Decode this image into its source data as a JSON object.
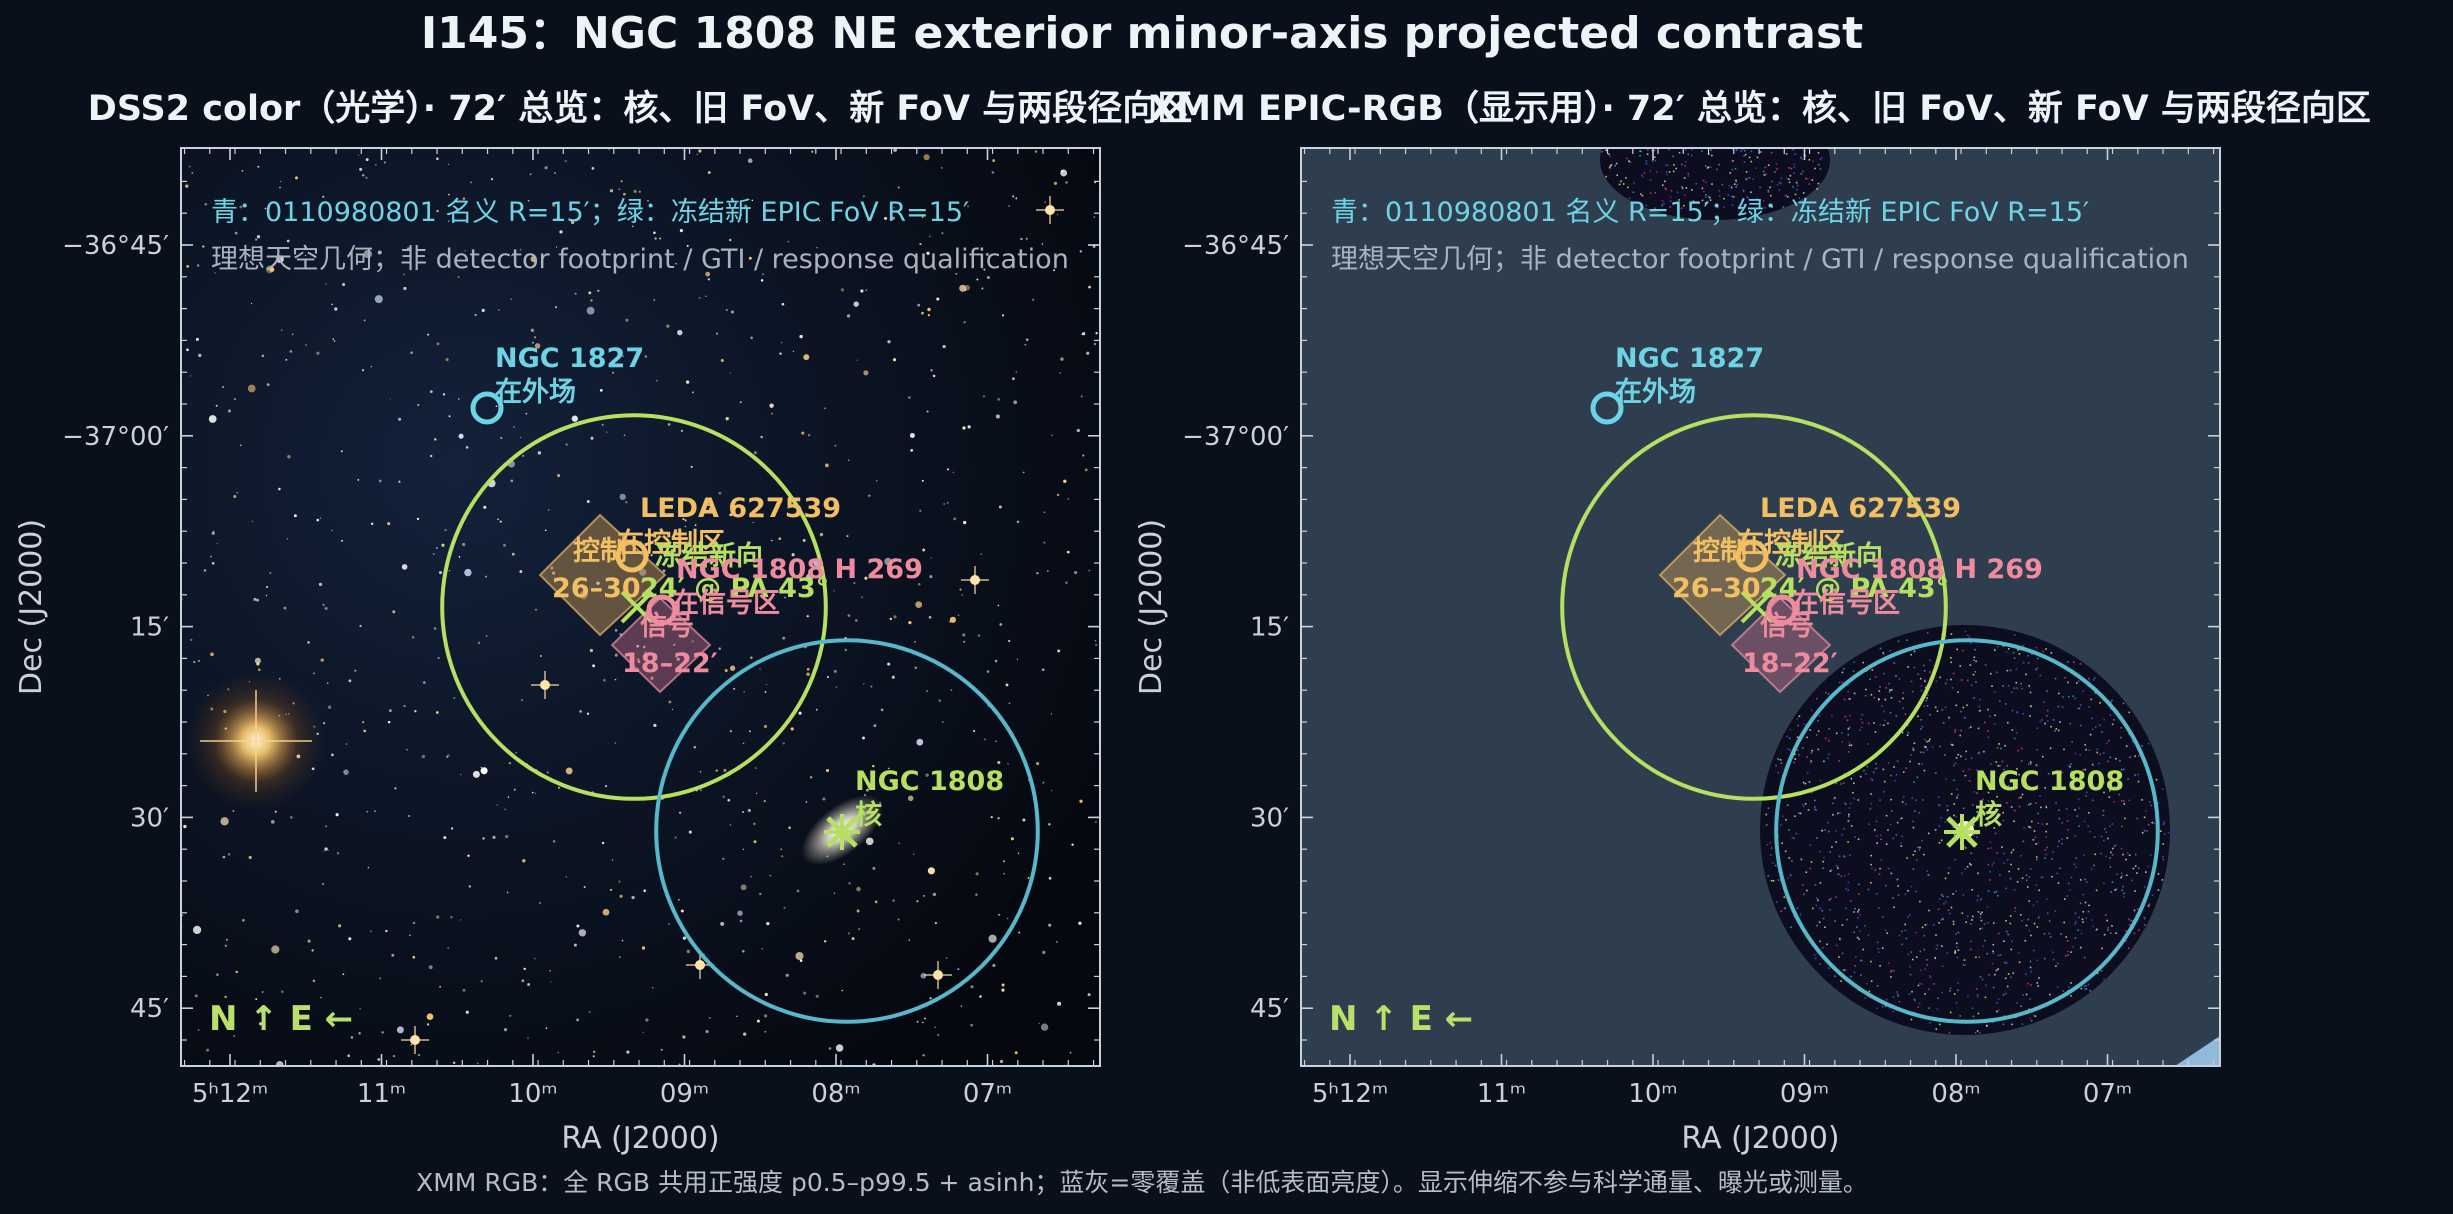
{
  "figure": {
    "title": "I145：NGC 1808 NE exterior minor-axis projected contrast",
    "footnote": "XMM RGB：全 RGB 共用正强度 p0.5–p99.5 + asinh；蓝灰=零覆盖（非低表面亮度）。显示伸缩不参与科学通量、曝光或测量。"
  },
  "panels": [
    {
      "title": "DSS2 color（光学）· 72′ 总览：核、旧 FoV、新 FoV 与两段径向区",
      "background": "dss2-optical-starfield",
      "legend_line1": "青：0110980801 名义 R=15′；绿：冻结新 EPIC FoV R=15′",
      "legend_line2": "理想天空几何；非 detector footprint / GTI / response qualification",
      "x_label": "RA (J2000)",
      "y_label": "Dec (J2000)",
      "compass": "N ↑   E ←"
    },
    {
      "title": "XMM EPIC-RGB（显示用）· 72′ 总览：核、旧 FoV、新 FoV 与两段径向区",
      "background": "xmm-epic-rgb",
      "legend_line1": "青：0110980801 名义 R=15′；绿：冻结新 EPIC FoV R=15′",
      "legend_line2": "理想天空几何；非 detector footprint / GTI / response qualification",
      "x_label": "RA (J2000)",
      "y_label": "Dec (J2000)",
      "compass": "N ↑   E ←"
    }
  ],
  "axes": {
    "ra_ticks": [
      {
        "label": "5ʰ12ᵐ",
        "value_min": 312
      },
      {
        "label": "11ᵐ",
        "value_min": 311
      },
      {
        "label": "10ᵐ",
        "value_min": 310
      },
      {
        "label": "09ᵐ",
        "value_min": 309
      },
      {
        "label": "08ᵐ",
        "value_min": 308
      },
      {
        "label": "07ᵐ",
        "value_min": 307
      }
    ],
    "dec_ticks": [
      {
        "label": "−36°45′",
        "value_arcmin": -2205
      },
      {
        "label": "−37°00′",
        "value_arcmin": -2220
      },
      {
        "label": "15′",
        "value_arcmin": -2235
      },
      {
        "label": "30′",
        "value_arcmin": -2250
      },
      {
        "label": "45′",
        "value_arcmin": -2265
      }
    ]
  },
  "circles": {
    "old_fov": {
      "name": "0110980801 名义 FoV",
      "radius_arcmin": 15,
      "color": "#56b8c9"
    },
    "new_fov": {
      "name": "冻结新 EPIC FoV",
      "radius_arcmin": 15,
      "color": "#b5e061"
    }
  },
  "labels": {
    "ngc1827_name": "NGC 1827",
    "ngc1827_sub": "在外场",
    "leda_name": "LEDA 627539",
    "leda_sub": "在控制区",
    "control_zone": "控制",
    "control_range": "26–30′",
    "frozen_dir": "冻结新向",
    "pa_label": "24′ @ PA 43°",
    "ngc1808h": "NGC 1808 H 269",
    "ngc1808h_sub": "在信号区",
    "signal_zone": "信号",
    "signal_range": "18–22′",
    "ngc1808_name": "NGC 1808",
    "ngc1808_sub": "核"
  },
  "colors": {
    "cyan": "#6fd3e6",
    "green": "#b5e061",
    "orange": "#f3bf63",
    "pink": "#ef8b9e",
    "panel2_bg": "#2e3e4f"
  }
}
